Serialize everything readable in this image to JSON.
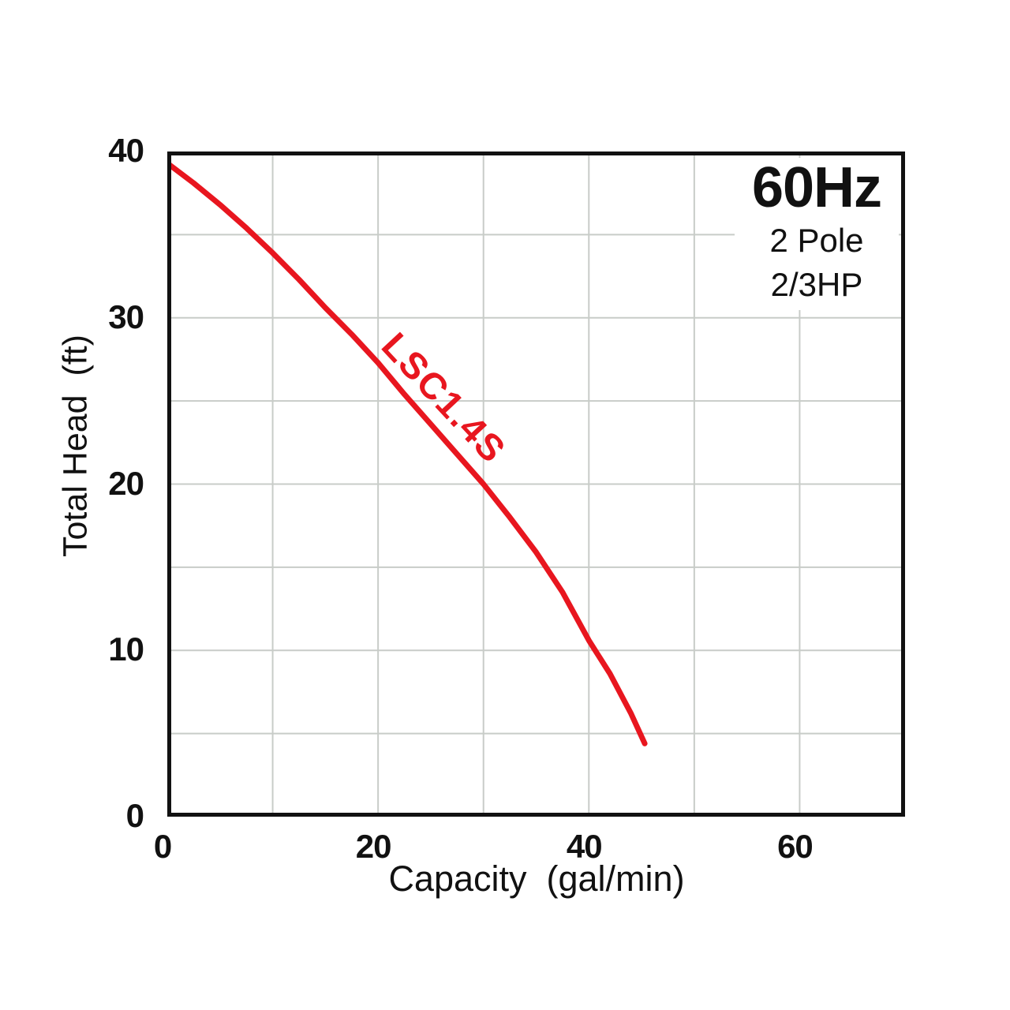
{
  "chart_data": {
    "type": "line",
    "title": "",
    "xlabel": "Capacity  (gal/min)",
    "ylabel": "Total Head  (ft)",
    "xlim": [
      0,
      70
    ],
    "ylim": [
      0,
      40
    ],
    "x_ticks": [
      0,
      20,
      40,
      60
    ],
    "y_ticks": [
      0,
      10,
      20,
      30,
      40
    ],
    "x_grid_step": 10,
    "y_grid_step": 5,
    "grid": true,
    "legend_position": "none",
    "series": [
      {
        "name": "LSC1.4S",
        "color": "#e8161f",
        "points": [
          [
            0,
            39.3
          ],
          [
            2.5,
            38.1
          ],
          [
            5,
            36.8
          ],
          [
            7.5,
            35.4
          ],
          [
            10,
            33.9
          ],
          [
            12.5,
            32.3
          ],
          [
            15,
            30.6
          ],
          [
            17.5,
            29.0
          ],
          [
            20,
            27.3
          ],
          [
            22.5,
            25.4
          ],
          [
            25,
            23.6
          ],
          [
            27.5,
            21.8
          ],
          [
            30,
            20.0
          ],
          [
            32.5,
            18.0
          ],
          [
            35,
            15.9
          ],
          [
            37.5,
            13.5
          ],
          [
            40,
            10.6
          ],
          [
            42,
            8.6
          ],
          [
            44,
            6.2
          ],
          [
            45.3,
            4.4
          ]
        ]
      }
    ],
    "annotations": {
      "frequency": "60Hz",
      "pole": "2 Pole",
      "power": "2/3HP"
    }
  },
  "colors": {
    "curve": "#e8161f",
    "grid": "#c8ccc8",
    "axis": "#111111",
    "text": "#111111",
    "background": "#ffffff"
  }
}
